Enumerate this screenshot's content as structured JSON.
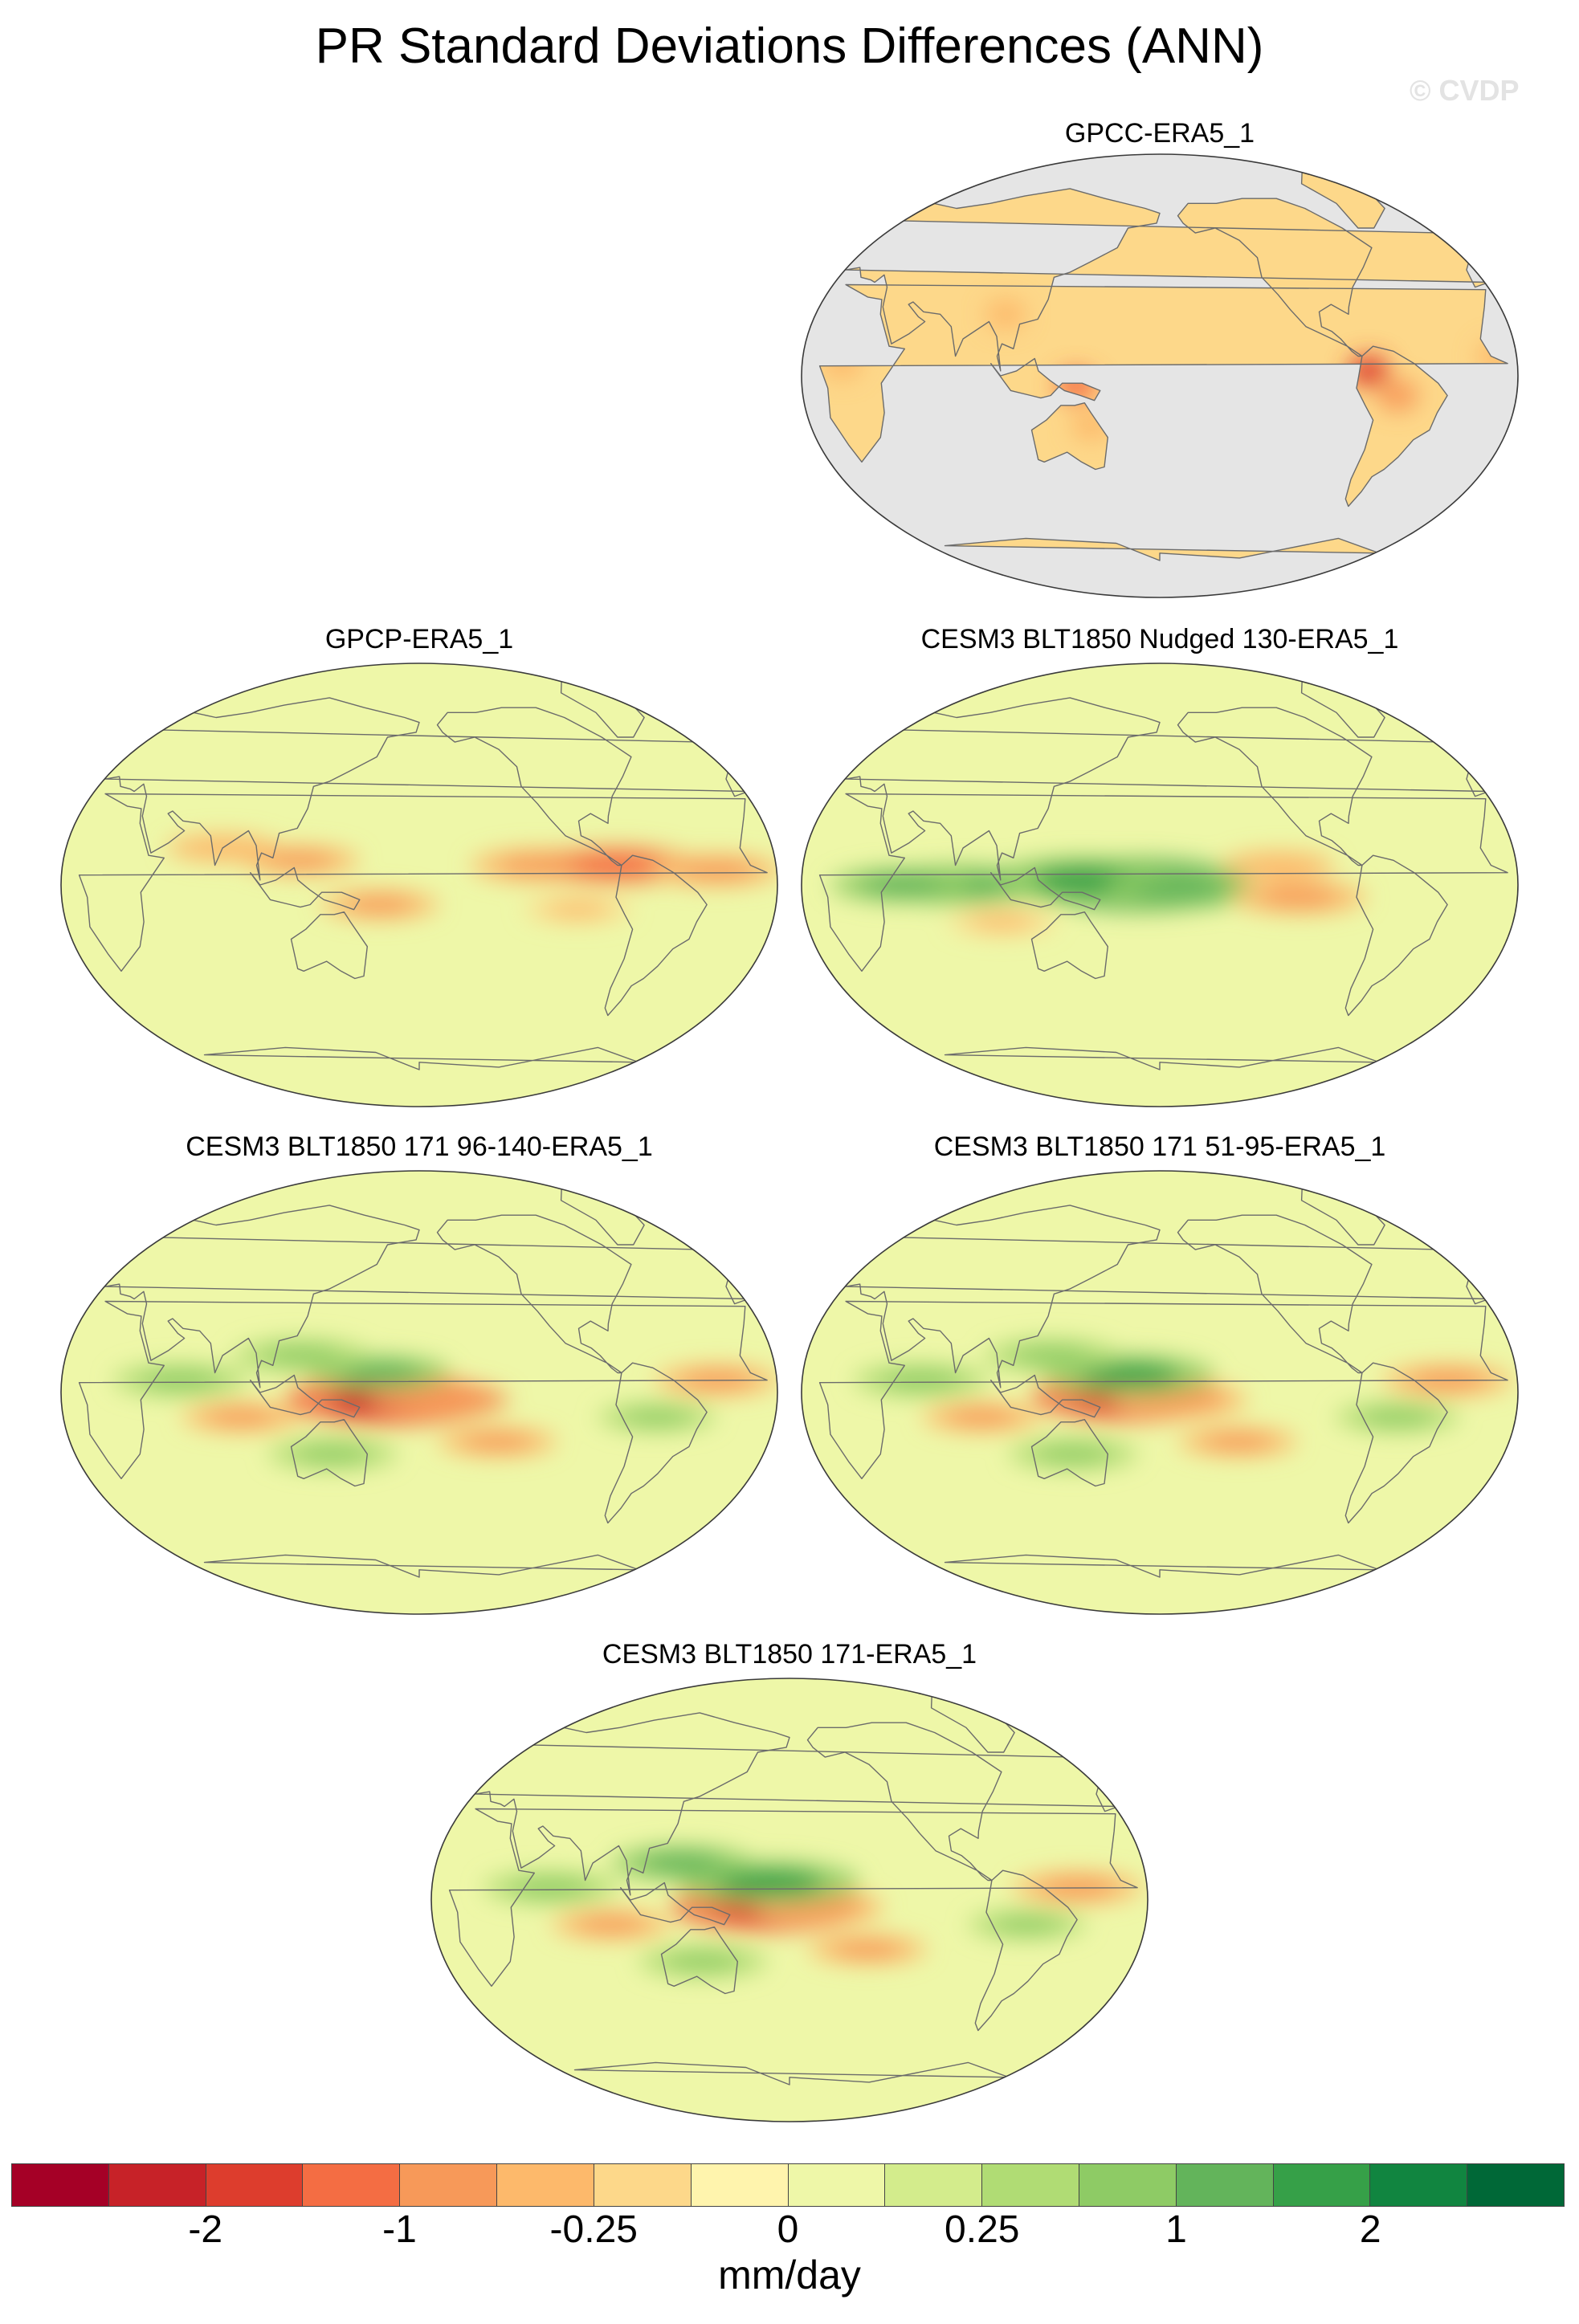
{
  "figure": {
    "title": "PR Standard Deviations Differences (ANN)",
    "watermark": "© CVDP"
  },
  "panels": [
    {
      "label": "GPCC-ERA5_1",
      "land_only": true,
      "anomalies": [
        {
          "lon": -75,
          "lat": 2,
          "v": -1.8
        },
        {
          "lon": -60,
          "lat": -8,
          "v": -0.6
        },
        {
          "lon": 138,
          "lat": -4,
          "v": -1.5
        },
        {
          "lon": 20,
          "lat": 5,
          "v": -0.4
        },
        {
          "lon": 100,
          "lat": 25,
          "v": -0.4
        },
        {
          "lon": -10,
          "lat": 8,
          "v": -0.5
        },
        {
          "lon": 145,
          "lat": -20,
          "v": -0.3
        }
      ]
    },
    {
      "label": "GPCP-ERA5_1",
      "land_only": false,
      "anomalies": [
        {
          "lon": -120,
          "lat": 8,
          "v": -0.9
        },
        {
          "lon": -80,
          "lat": 8,
          "v": -1.3
        },
        {
          "lon": -30,
          "lat": 6,
          "v": -0.8
        },
        {
          "lon": 160,
          "lat": -8,
          "v": -0.6
        },
        {
          "lon": 120,
          "lat": 10,
          "v": -0.6
        },
        {
          "lon": 80,
          "lat": 15,
          "v": -0.5
        },
        {
          "lon": -100,
          "lat": -10,
          "v": -0.4
        }
      ]
    },
    {
      "label": "CESM3 BLT1850 Nudged 130-ERA5_1",
      "land_only": false,
      "anomalies": [
        {
          "lon": 170,
          "lat": 0,
          "v": 2.4
        },
        {
          "lon": 140,
          "lat": 2,
          "v": 1.8
        },
        {
          "lon": -170,
          "lat": -2,
          "v": 1.2
        },
        {
          "lon": 80,
          "lat": 0,
          "v": 1.4
        },
        {
          "lon": 50,
          "lat": 0,
          "v": 1.0
        },
        {
          "lon": -110,
          "lat": -5,
          "v": -0.9
        },
        {
          "lon": -120,
          "lat": 8,
          "v": -0.5
        },
        {
          "lon": 100,
          "lat": -15,
          "v": -0.4
        }
      ]
    },
    {
      "label": "CESM3 BLT1850 171 96-140-ERA5_1",
      "land_only": false,
      "anomalies": [
        {
          "lon": 165,
          "lat": -3,
          "v": -2.2
        },
        {
          "lon": -170,
          "lat": -3,
          "v": -1.0
        },
        {
          "lon": 160,
          "lat": 8,
          "v": 1.0
        },
        {
          "lon": 120,
          "lat": 15,
          "v": 0.9
        },
        {
          "lon": 60,
          "lat": 5,
          "v": 0.9
        },
        {
          "lon": -140,
          "lat": -20,
          "v": -0.6
        },
        {
          "lon": -30,
          "lat": 5,
          "v": -0.7
        },
        {
          "lon": 90,
          "lat": -10,
          "v": -0.6
        },
        {
          "lon": 135,
          "lat": -25,
          "v": 0.8
        },
        {
          "lon": -60,
          "lat": -10,
          "v": 0.6
        }
      ]
    },
    {
      "label": "CESM3 BLT1850 171 51-95-ERA5_1",
      "land_only": false,
      "anomalies": [
        {
          "lon": 165,
          "lat": -2,
          "v": -2.0
        },
        {
          "lon": -170,
          "lat": -3,
          "v": -0.9
        },
        {
          "lon": 165,
          "lat": 7,
          "v": 1.5
        },
        {
          "lon": 125,
          "lat": 15,
          "v": 0.9
        },
        {
          "lon": 60,
          "lat": 5,
          "v": 0.9
        },
        {
          "lon": -140,
          "lat": -20,
          "v": -0.6
        },
        {
          "lon": -35,
          "lat": 5,
          "v": -0.8
        },
        {
          "lon": 90,
          "lat": -10,
          "v": -0.6
        },
        {
          "lon": 135,
          "lat": -25,
          "v": 0.8
        },
        {
          "lon": -60,
          "lat": -10,
          "v": 0.7
        }
      ]
    },
    {
      "label": "CESM3 BLT1850 171-ERA5_1",
      "land_only": false,
      "anomalies": [
        {
          "lon": 170,
          "lat": -3,
          "v": -2.0
        },
        {
          "lon": -165,
          "lat": -3,
          "v": -0.8
        },
        {
          "lon": 170,
          "lat": 7,
          "v": 1.7
        },
        {
          "lon": 125,
          "lat": 15,
          "v": 1.0
        },
        {
          "lon": 60,
          "lat": 5,
          "v": 0.9
        },
        {
          "lon": -140,
          "lat": -20,
          "v": -0.6
        },
        {
          "lon": -35,
          "lat": 5,
          "v": -0.8
        },
        {
          "lon": 90,
          "lat": -10,
          "v": -0.6
        },
        {
          "lon": 135,
          "lat": -25,
          "v": 0.8
        },
        {
          "lon": -60,
          "lat": -10,
          "v": 0.6
        }
      ]
    }
  ],
  "colorbar": {
    "colors": [
      "#a50026",
      "#c72228",
      "#dd3d2d",
      "#f46d43",
      "#f79959",
      "#fdb96b",
      "#fdd88a",
      "#fff4ad",
      "#eef7a8",
      "#d3ec8c",
      "#b0dc74",
      "#8ecb65",
      "#63b45b",
      "#36a048",
      "#118540",
      "#006837"
    ],
    "tick_labels": [
      "-2",
      "-1",
      "-0.25",
      "0",
      "0.25",
      "1",
      "2"
    ],
    "tick_after_box": [
      2,
      4,
      6,
      8,
      10,
      12,
      14
    ],
    "units": "mm/day",
    "levels": [
      -3,
      -2.5,
      -2,
      -1.5,
      -1,
      -0.5,
      -0.25,
      -0.1,
      0,
      0.1,
      0.25,
      0.5,
      1,
      1.5,
      2,
      2.5,
      3
    ]
  },
  "colors": {
    "ocean_masked": "#e5e5e5",
    "coast": "#6b6b6b"
  }
}
